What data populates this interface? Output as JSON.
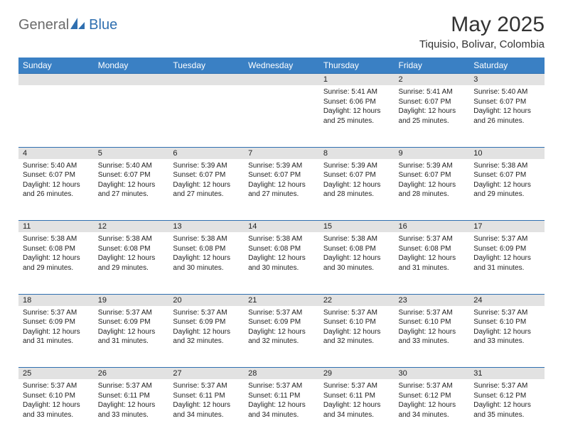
{
  "brand": {
    "general": "General",
    "blue": "Blue"
  },
  "title": "May 2025",
  "location": "Tiquisio, Bolivar, Colombia",
  "colors": {
    "header_bg": "#3a80c4",
    "daynum_bg": "#e2e2e2",
    "border": "#2f6fb0"
  },
  "weekdays": [
    "Sunday",
    "Monday",
    "Tuesday",
    "Wednesday",
    "Thursday",
    "Friday",
    "Saturday"
  ],
  "weeks": [
    {
      "nums": [
        "",
        "",
        "",
        "",
        "1",
        "2",
        "3"
      ],
      "cells": [
        null,
        null,
        null,
        null,
        {
          "sunrise": "Sunrise: 5:41 AM",
          "sunset": "Sunset: 6:06 PM",
          "day1": "Daylight: 12 hours",
          "day2": "and 25 minutes."
        },
        {
          "sunrise": "Sunrise: 5:41 AM",
          "sunset": "Sunset: 6:07 PM",
          "day1": "Daylight: 12 hours",
          "day2": "and 25 minutes."
        },
        {
          "sunrise": "Sunrise: 5:40 AM",
          "sunset": "Sunset: 6:07 PM",
          "day1": "Daylight: 12 hours",
          "day2": "and 26 minutes."
        }
      ]
    },
    {
      "nums": [
        "4",
        "5",
        "6",
        "7",
        "8",
        "9",
        "10"
      ],
      "cells": [
        {
          "sunrise": "Sunrise: 5:40 AM",
          "sunset": "Sunset: 6:07 PM",
          "day1": "Daylight: 12 hours",
          "day2": "and 26 minutes."
        },
        {
          "sunrise": "Sunrise: 5:40 AM",
          "sunset": "Sunset: 6:07 PM",
          "day1": "Daylight: 12 hours",
          "day2": "and 27 minutes."
        },
        {
          "sunrise": "Sunrise: 5:39 AM",
          "sunset": "Sunset: 6:07 PM",
          "day1": "Daylight: 12 hours",
          "day2": "and 27 minutes."
        },
        {
          "sunrise": "Sunrise: 5:39 AM",
          "sunset": "Sunset: 6:07 PM",
          "day1": "Daylight: 12 hours",
          "day2": "and 27 minutes."
        },
        {
          "sunrise": "Sunrise: 5:39 AM",
          "sunset": "Sunset: 6:07 PM",
          "day1": "Daylight: 12 hours",
          "day2": "and 28 minutes."
        },
        {
          "sunrise": "Sunrise: 5:39 AM",
          "sunset": "Sunset: 6:07 PM",
          "day1": "Daylight: 12 hours",
          "day2": "and 28 minutes."
        },
        {
          "sunrise": "Sunrise: 5:38 AM",
          "sunset": "Sunset: 6:07 PM",
          "day1": "Daylight: 12 hours",
          "day2": "and 29 minutes."
        }
      ]
    },
    {
      "nums": [
        "11",
        "12",
        "13",
        "14",
        "15",
        "16",
        "17"
      ],
      "cells": [
        {
          "sunrise": "Sunrise: 5:38 AM",
          "sunset": "Sunset: 6:08 PM",
          "day1": "Daylight: 12 hours",
          "day2": "and 29 minutes."
        },
        {
          "sunrise": "Sunrise: 5:38 AM",
          "sunset": "Sunset: 6:08 PM",
          "day1": "Daylight: 12 hours",
          "day2": "and 29 minutes."
        },
        {
          "sunrise": "Sunrise: 5:38 AM",
          "sunset": "Sunset: 6:08 PM",
          "day1": "Daylight: 12 hours",
          "day2": "and 30 minutes."
        },
        {
          "sunrise": "Sunrise: 5:38 AM",
          "sunset": "Sunset: 6:08 PM",
          "day1": "Daylight: 12 hours",
          "day2": "and 30 minutes."
        },
        {
          "sunrise": "Sunrise: 5:38 AM",
          "sunset": "Sunset: 6:08 PM",
          "day1": "Daylight: 12 hours",
          "day2": "and 30 minutes."
        },
        {
          "sunrise": "Sunrise: 5:37 AM",
          "sunset": "Sunset: 6:08 PM",
          "day1": "Daylight: 12 hours",
          "day2": "and 31 minutes."
        },
        {
          "sunrise": "Sunrise: 5:37 AM",
          "sunset": "Sunset: 6:09 PM",
          "day1": "Daylight: 12 hours",
          "day2": "and 31 minutes."
        }
      ]
    },
    {
      "nums": [
        "18",
        "19",
        "20",
        "21",
        "22",
        "23",
        "24"
      ],
      "cells": [
        {
          "sunrise": "Sunrise: 5:37 AM",
          "sunset": "Sunset: 6:09 PM",
          "day1": "Daylight: 12 hours",
          "day2": "and 31 minutes."
        },
        {
          "sunrise": "Sunrise: 5:37 AM",
          "sunset": "Sunset: 6:09 PM",
          "day1": "Daylight: 12 hours",
          "day2": "and 31 minutes."
        },
        {
          "sunrise": "Sunrise: 5:37 AM",
          "sunset": "Sunset: 6:09 PM",
          "day1": "Daylight: 12 hours",
          "day2": "and 32 minutes."
        },
        {
          "sunrise": "Sunrise: 5:37 AM",
          "sunset": "Sunset: 6:09 PM",
          "day1": "Daylight: 12 hours",
          "day2": "and 32 minutes."
        },
        {
          "sunrise": "Sunrise: 5:37 AM",
          "sunset": "Sunset: 6:10 PM",
          "day1": "Daylight: 12 hours",
          "day2": "and 32 minutes."
        },
        {
          "sunrise": "Sunrise: 5:37 AM",
          "sunset": "Sunset: 6:10 PM",
          "day1": "Daylight: 12 hours",
          "day2": "and 33 minutes."
        },
        {
          "sunrise": "Sunrise: 5:37 AM",
          "sunset": "Sunset: 6:10 PM",
          "day1": "Daylight: 12 hours",
          "day2": "and 33 minutes."
        }
      ]
    },
    {
      "nums": [
        "25",
        "26",
        "27",
        "28",
        "29",
        "30",
        "31"
      ],
      "cells": [
        {
          "sunrise": "Sunrise: 5:37 AM",
          "sunset": "Sunset: 6:10 PM",
          "day1": "Daylight: 12 hours",
          "day2": "and 33 minutes."
        },
        {
          "sunrise": "Sunrise: 5:37 AM",
          "sunset": "Sunset: 6:11 PM",
          "day1": "Daylight: 12 hours",
          "day2": "and 33 minutes."
        },
        {
          "sunrise": "Sunrise: 5:37 AM",
          "sunset": "Sunset: 6:11 PM",
          "day1": "Daylight: 12 hours",
          "day2": "and 34 minutes."
        },
        {
          "sunrise": "Sunrise: 5:37 AM",
          "sunset": "Sunset: 6:11 PM",
          "day1": "Daylight: 12 hours",
          "day2": "and 34 minutes."
        },
        {
          "sunrise": "Sunrise: 5:37 AM",
          "sunset": "Sunset: 6:11 PM",
          "day1": "Daylight: 12 hours",
          "day2": "and 34 minutes."
        },
        {
          "sunrise": "Sunrise: 5:37 AM",
          "sunset": "Sunset: 6:12 PM",
          "day1": "Daylight: 12 hours",
          "day2": "and 34 minutes."
        },
        {
          "sunrise": "Sunrise: 5:37 AM",
          "sunset": "Sunset: 6:12 PM",
          "day1": "Daylight: 12 hours",
          "day2": "and 35 minutes."
        }
      ]
    }
  ]
}
